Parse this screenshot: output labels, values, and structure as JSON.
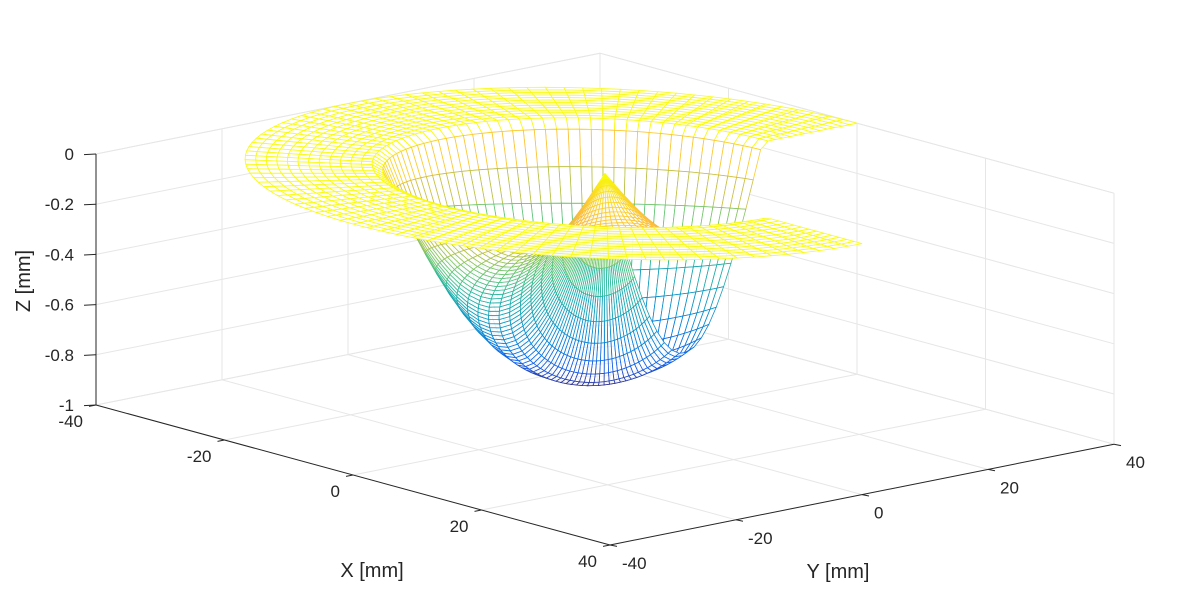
{
  "chart_data": {
    "type": "surface-mesh-3d",
    "title": "",
    "xlabel": "X [mm]",
    "ylabel": "Y [mm]",
    "zlabel": "Z [mm]",
    "xlim": [
      -40,
      40
    ],
    "ylim": [
      -40,
      40
    ],
    "zlim": [
      -1,
      0
    ],
    "xticks": [
      "-40",
      "-20",
      "0",
      "20",
      "40"
    ],
    "yticks": [
      "-40",
      "-20",
      "0",
      "20",
      "40"
    ],
    "zticks": [
      "0",
      "-0.2",
      "-0.4",
      "-0.6",
      "-0.8",
      "-1"
    ],
    "grid": true,
    "colormap": "parula",
    "surface": {
      "description_free": true,
      "outer_radius": 40,
      "inner_radius": 25,
      "flat_rim_z": 0,
      "center": [
        0,
        0
      ],
      "depression_min_z": -0.95,
      "center_peak_z": 0,
      "cutaway_quadrant": "positive-x, negative-y"
    }
  },
  "colors": {
    "axis": "#262626",
    "grid": "#e6e6e6",
    "rim": "#f9fb0e"
  }
}
